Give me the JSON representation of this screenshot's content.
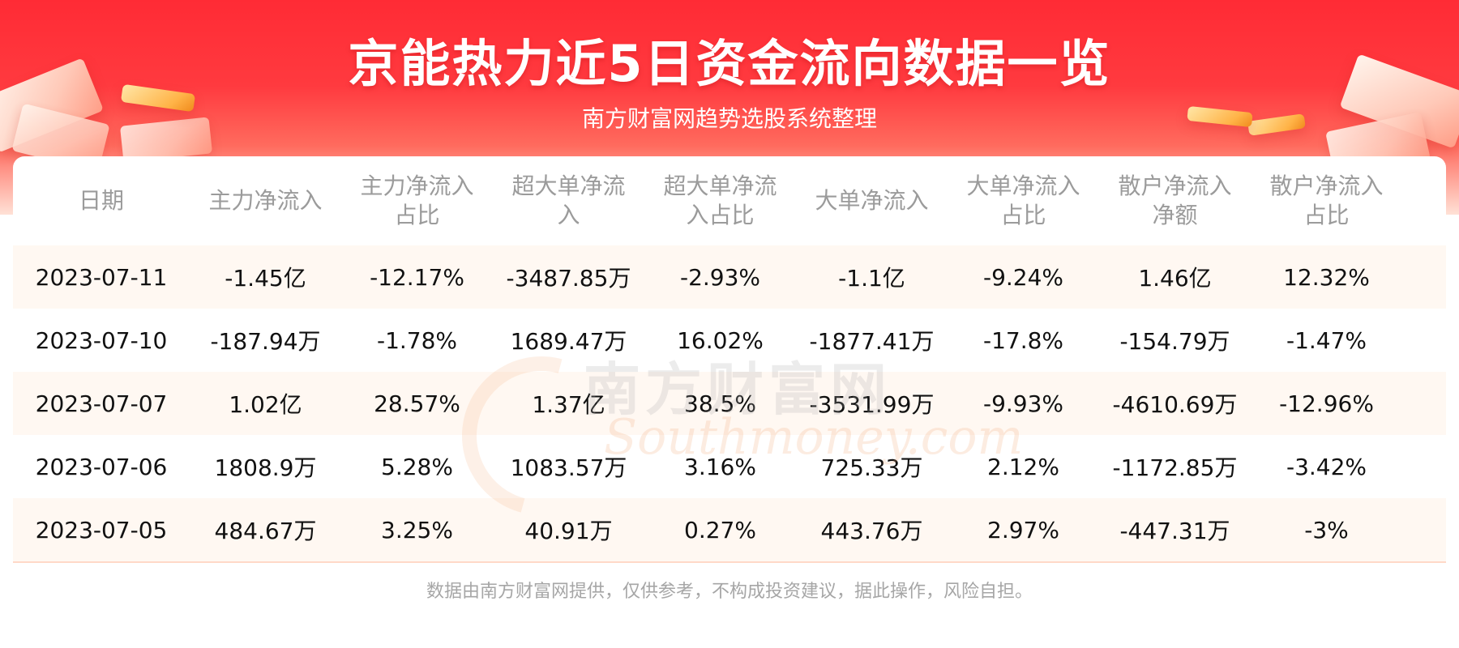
{
  "header": {
    "title": "京能热力近5日资金流向数据一览",
    "subtitle": "南方财富网趋势选股系统整理"
  },
  "table": {
    "columns": [
      [
        "日期"
      ],
      [
        "主力净流入"
      ],
      [
        "主力净流入",
        "占比"
      ],
      [
        "超大单净流",
        "入"
      ],
      [
        "超大单净流",
        "入占比"
      ],
      [
        "大单净流入"
      ],
      [
        "大单净流入",
        "占比"
      ],
      [
        "散户净流入",
        "净额"
      ],
      [
        "散户净流入",
        "占比"
      ]
    ],
    "rows": [
      [
        "2023-07-11",
        "-1.45亿",
        "-12.17%",
        "-3487.85万",
        "-2.93%",
        "-1.1亿",
        "-9.24%",
        "1.46亿",
        "12.32%"
      ],
      [
        "2023-07-10",
        "-187.94万",
        "-1.78%",
        "1689.47万",
        "16.02%",
        "-1877.41万",
        "-17.8%",
        "-154.79万",
        "-1.47%"
      ],
      [
        "2023-07-07",
        "1.02亿",
        "28.57%",
        "1.37亿",
        "38.5%",
        "-3531.99万",
        "-9.93%",
        "-4610.69万",
        "-12.96%"
      ],
      [
        "2023-07-06",
        "1808.9万",
        "5.28%",
        "1083.57万",
        "3.16%",
        "725.33万",
        "2.12%",
        "-1172.85万",
        "-3.42%"
      ],
      [
        "2023-07-05",
        "484.67万",
        "3.25%",
        "40.91万",
        "0.27%",
        "443.76万",
        "2.97%",
        "-447.31万",
        "-3%"
      ]
    ]
  },
  "watermark": {
    "cn": "南方财富网",
    "en": "Southmoney.com"
  },
  "footer": {
    "disclaimer": "数据由南方财富网提供，仅供参考，不构成投资建议，据此操作，风险自担。"
  },
  "colors": {
    "banner_red": "#ff2b35",
    "header_text": "#9b9b9b",
    "alt_row": "#fff8f2",
    "footer_text": "#a6a6a6"
  }
}
